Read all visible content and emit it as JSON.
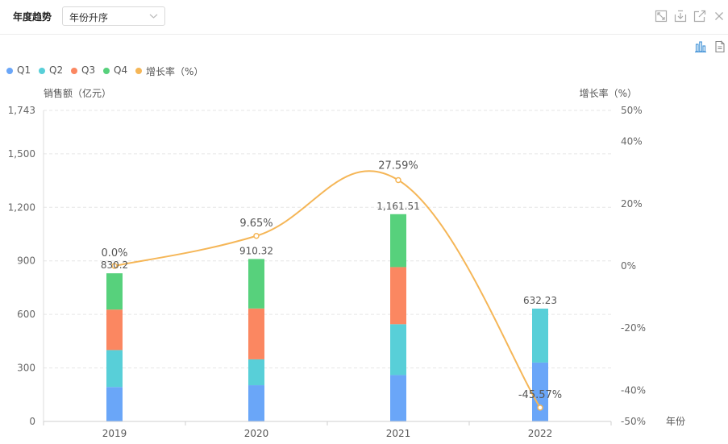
{
  "header": {
    "title": "年度趋势",
    "select_value": "年份升序"
  },
  "toolbar": {
    "icons": [
      "fullscreen-icon",
      "download-icon",
      "open-external-icon",
      "close-icon"
    ],
    "secondary_icons": [
      "bar-chart-icon",
      "document-icon"
    ]
  },
  "colors": {
    "q1": "#6aa6f8",
    "q2": "#58cfd8",
    "q3": "#fb8761",
    "q4": "#57d17c",
    "growth": "#f5b657"
  },
  "chart_data": {
    "type": "bar",
    "stacked": true,
    "categories": [
      "2019",
      "2020",
      "2021",
      "2022"
    ],
    "series": [
      {
        "name": "Q1",
        "values": [
          193,
          203,
          260,
          330
        ]
      },
      {
        "name": "Q2",
        "values": [
          207,
          145,
          285,
          302.23
        ]
      },
      {
        "name": "Q3",
        "values": [
          227,
          285,
          320,
          0
        ]
      },
      {
        "name": "Q4",
        "values": [
          203.2,
          277.32,
          296.51,
          0
        ]
      }
    ],
    "totals": [
      830.2,
      910.32,
      1161.51,
      632.23
    ],
    "total_labels": [
      "830.2",
      "910.32",
      "1,161.51",
      "632.23"
    ],
    "line_series": {
      "name": "增长率（%）",
      "values": [
        0.0,
        9.65,
        27.59,
        -45.57
      ],
      "labels": [
        "0.0%",
        "9.65%",
        "27.59%",
        "-45.57%"
      ]
    },
    "y_left": {
      "label": "销售额（亿元）",
      "min": 0,
      "max": 1743,
      "ticks": [
        0,
        300,
        600,
        900,
        1200,
        1500,
        1743
      ],
      "tick_labels": [
        "0",
        "300",
        "600",
        "900",
        "1,200",
        "1,500",
        "1,743"
      ]
    },
    "y_right": {
      "label": "增长率（%）",
      "min": -50,
      "max": 50,
      "ticks": [
        -50,
        -40,
        -20,
        0,
        20,
        40,
        50
      ],
      "tick_labels": [
        "-50%",
        "-40%",
        "-20%",
        "0%",
        "20%",
        "40%",
        "50%"
      ]
    },
    "xlabel": "年份",
    "grid": true,
    "legend_position": "top-left"
  }
}
